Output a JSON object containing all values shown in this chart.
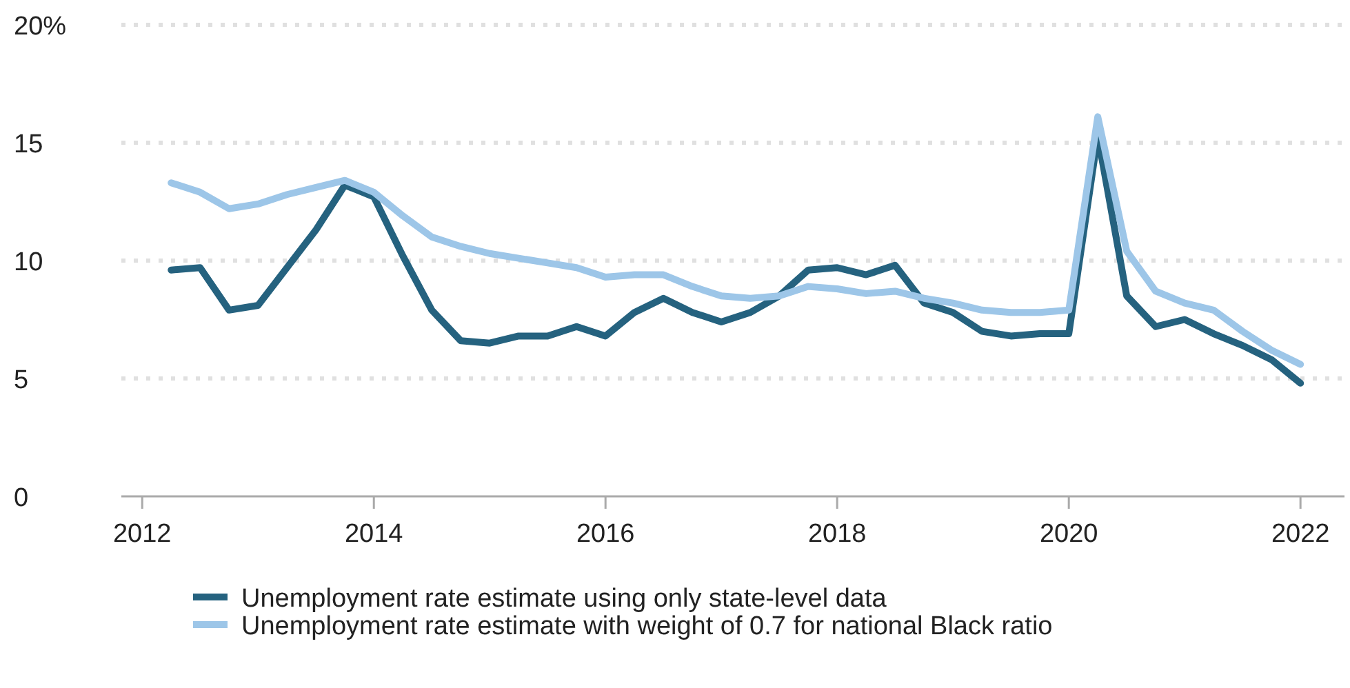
{
  "chart_data": {
    "type": "line",
    "x": [
      2012.25,
      2012.5,
      2012.75,
      2013,
      2013.25,
      2013.5,
      2013.75,
      2014,
      2014.25,
      2014.5,
      2014.75,
      2015,
      2015.25,
      2015.5,
      2015.75,
      2016,
      2016.25,
      2016.5,
      2016.75,
      2017,
      2017.25,
      2017.5,
      2017.75,
      2018,
      2018.25,
      2018.5,
      2018.75,
      2019,
      2019.25,
      2019.5,
      2019.75,
      2020,
      2020.25,
      2020.5,
      2020.75,
      2021,
      2021.25,
      2021.5,
      2021.75,
      2022
    ],
    "series": [
      {
        "name": "Unemployment rate estimate using only state-level data",
        "color": "#25627f",
        "values": [
          9.6,
          9.7,
          7.9,
          8.1,
          9.7,
          11.3,
          13.2,
          12.7,
          10.2,
          7.9,
          6.6,
          6.5,
          6.8,
          6.8,
          7.2,
          6.8,
          7.8,
          8.4,
          7.8,
          7.4,
          7.8,
          8.5,
          9.6,
          9.7,
          9.4,
          9.8,
          8.2,
          7.8,
          7.0,
          6.8,
          6.9,
          6.9,
          15.3,
          8.5,
          7.2,
          7.5,
          6.9,
          6.4,
          5.8,
          4.8
        ]
      },
      {
        "name": "Unemployment rate estimate with weight of 0.7 for national Black ratio",
        "color": "#9dc6e8",
        "values": [
          13.3,
          12.9,
          12.2,
          12.4,
          12.8,
          13.1,
          13.4,
          12.9,
          11.9,
          11.0,
          10.6,
          10.3,
          10.1,
          9.9,
          9.7,
          9.3,
          9.4,
          9.4,
          8.9,
          8.5,
          8.4,
          8.5,
          8.9,
          8.8,
          8.6,
          8.7,
          8.4,
          8.2,
          7.9,
          7.8,
          7.8,
          7.9,
          16.1,
          10.4,
          8.7,
          8.2,
          7.9,
          7.0,
          6.2,
          5.6
        ]
      }
    ],
    "xlim": [
      2011.82,
      2022.38
    ],
    "xticks": [
      2012,
      2014,
      2016,
      2018,
      2020,
      2022
    ],
    "ylim": [
      0,
      20
    ],
    "yticks": [
      0,
      5,
      10,
      15,
      {
        "value": 20,
        "label": "20%"
      }
    ],
    "grid": "y",
    "legend": "bottom",
    "marker": "none",
    "line_style": "solid"
  }
}
